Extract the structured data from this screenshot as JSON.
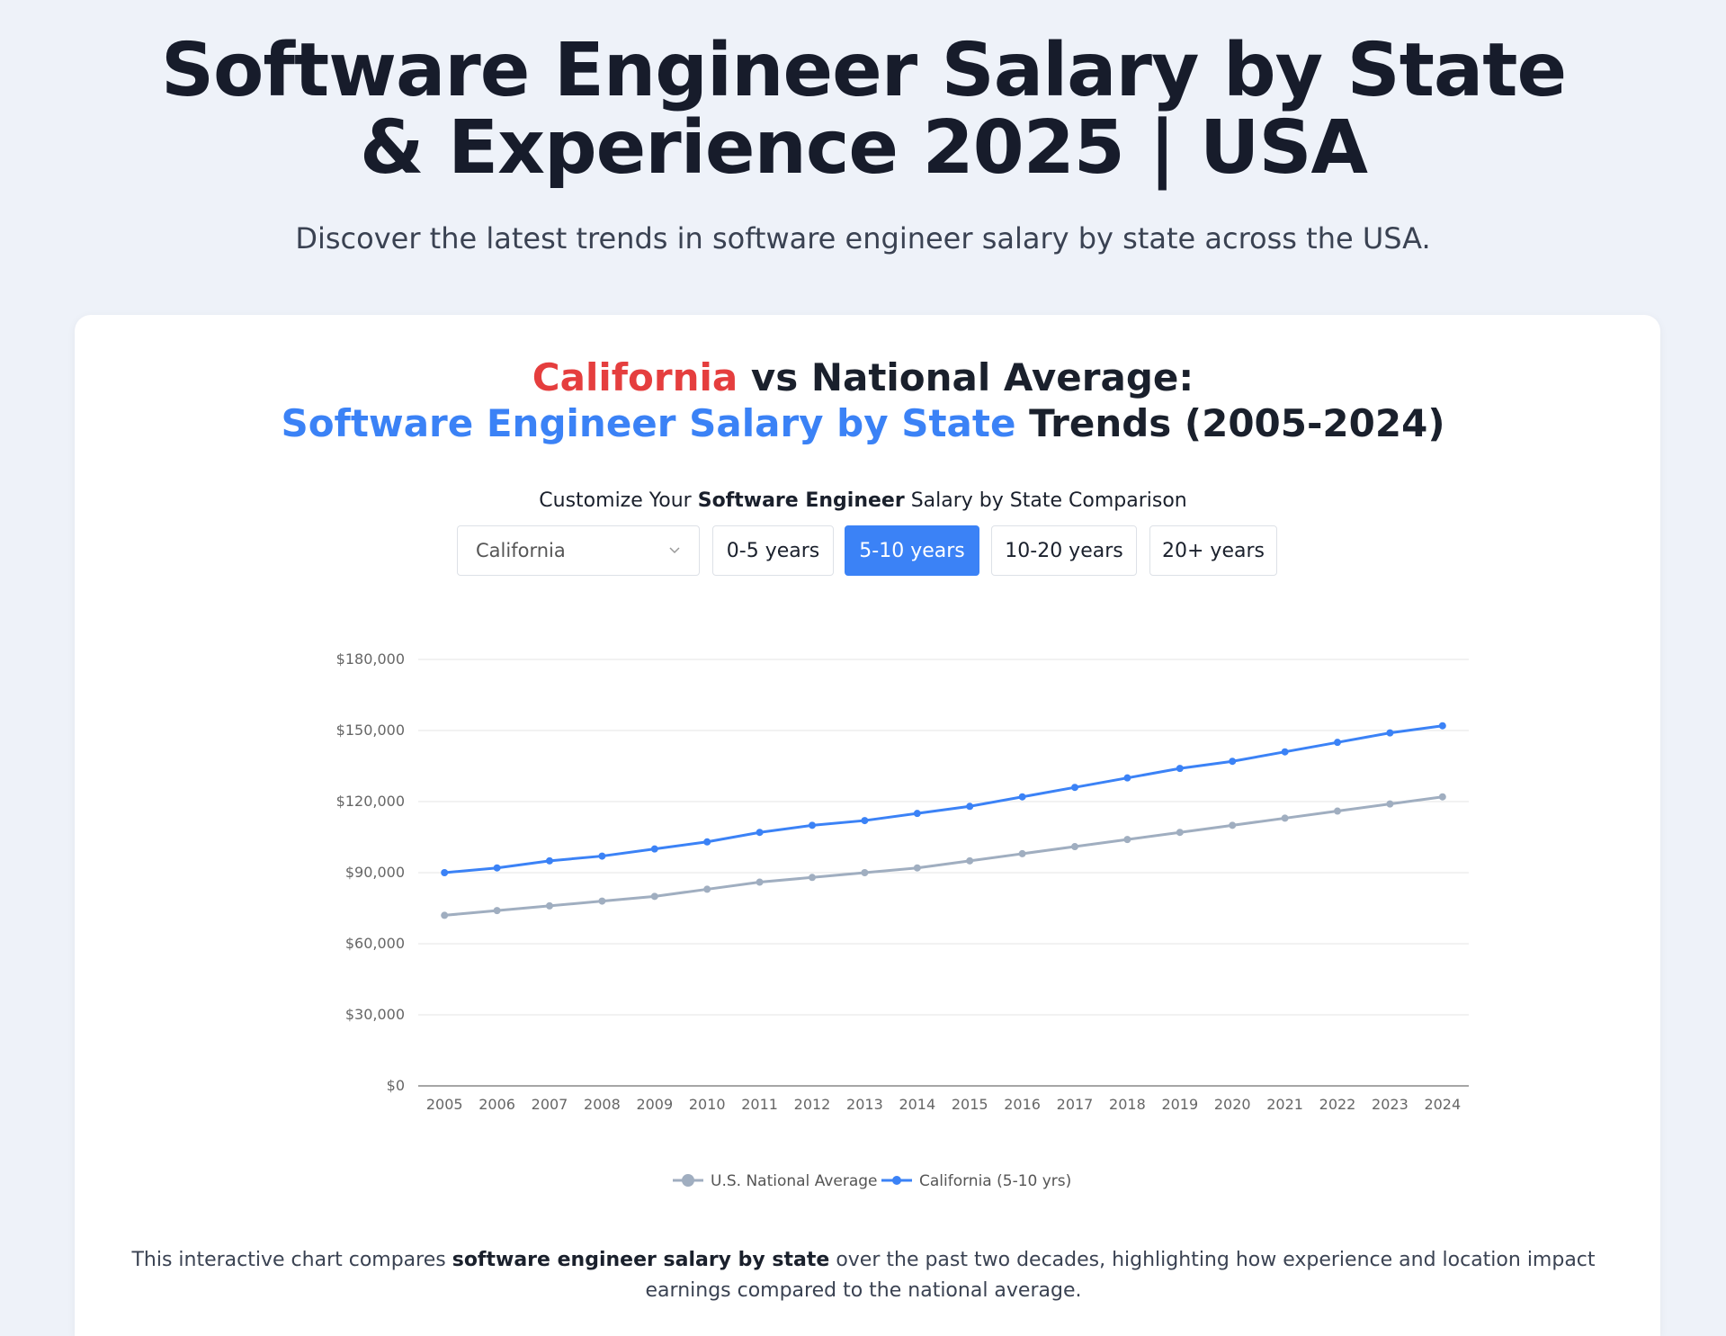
{
  "header": {
    "title": "Software Engineer Salary by State & Experience 2025 | USA",
    "subtitle": "Discover the latest trends in software engineer salary by state across the USA."
  },
  "chart_heading": {
    "line1": [
      "California",
      " vs National Average:"
    ],
    "line2": [
      "Software Engineer Salary by State",
      " Trends (2005-2024)"
    ],
    "accent_red": "#e53e3e",
    "accent_blue": "#3b82f6"
  },
  "controls": {
    "label": [
      "Customize Your ",
      "Software Engineer",
      " Salary by State Comparison"
    ],
    "select": "California",
    "options": [
      "0-5 years",
      "5-10 years",
      "10-20 years",
      "20+ years"
    ],
    "selected": 1
  },
  "chart_data": {
    "type": "line",
    "categories": [
      "2005",
      "2006",
      "2007",
      "2008",
      "2009",
      "2010",
      "2011",
      "2012",
      "2013",
      "2014",
      "2015",
      "2016",
      "2017",
      "2018",
      "2019",
      "2020",
      "2021",
      "2022",
      "2023",
      "2024"
    ],
    "series": [
      {
        "name": "U.S. National Average",
        "color": "#a0aec0",
        "values": [
          72000,
          74000,
          76000,
          78000,
          80000,
          83000,
          86000,
          88000,
          90000,
          92000,
          95000,
          98000,
          101000,
          104000,
          107000,
          110000,
          113000,
          116000,
          119000,
          122000
        ]
      },
      {
        "name": "California (5-10 yrs)",
        "color": "#3b82f6",
        "values": [
          90000,
          92000,
          95000,
          97000,
          100000,
          103000,
          107000,
          110000,
          112000,
          115000,
          118000,
          122000,
          126000,
          130000,
          134000,
          137000,
          141000,
          145000,
          149000,
          152000
        ]
      }
    ],
    "ylim": [
      0,
      180000
    ],
    "yticks": [
      {
        "value": 0,
        "label": "$0"
      },
      {
        "value": 30000,
        "label": "$30,000"
      },
      {
        "value": 60000,
        "label": "$60,000"
      },
      {
        "value": 90000,
        "label": "$90,000"
      },
      {
        "value": 120000,
        "label": "$120,000"
      },
      {
        "value": 150000,
        "label": "$150,000"
      },
      {
        "value": 180000,
        "label": "$180,000"
      }
    ],
    "grid": true,
    "legend": "bottom"
  },
  "description": [
    "This interactive chart compares ",
    "software engineer salary by state",
    " over the past two decades, highlighting how experience and location impact earnings compared to the national average."
  ]
}
